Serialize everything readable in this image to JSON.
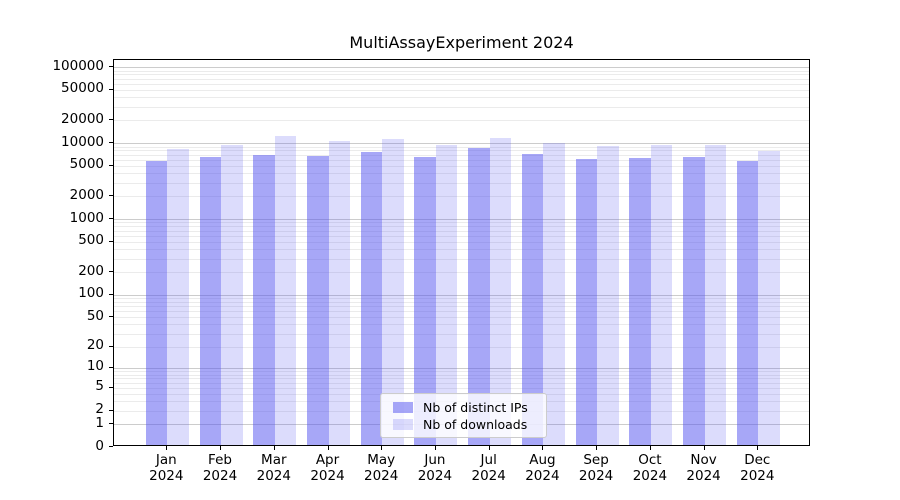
{
  "chart_data": {
    "type": "bar",
    "title": "MultiAssayExperiment 2024",
    "months": [
      "Jan",
      "Feb",
      "Mar",
      "Apr",
      "May",
      "Jun",
      "Jul",
      "Aug",
      "Sep",
      "Oct",
      "Nov",
      "Dec"
    ],
    "year": "2024",
    "series": [
      {
        "name": "Nb of distinct IPs",
        "color": "rgba(80,80,240,0.5)",
        "values": [
          5400,
          6100,
          6500,
          6300,
          7200,
          6100,
          8100,
          6800,
          5800,
          6000,
          6100,
          5400
        ]
      },
      {
        "name": "Nb of downloads",
        "color": "rgba(80,80,240,0.2)",
        "values": [
          7900,
          8800,
          11500,
          9900,
          10800,
          8900,
          10900,
          9300,
          8500,
          8900,
          8900,
          7400
        ]
      }
    ],
    "y_scale": "log10(value+1)",
    "y_tick_values": [
      100000,
      50000,
      20000,
      10000,
      5000,
      2000,
      1000,
      500,
      200,
      100,
      50,
      20,
      10,
      5,
      2,
      1,
      0
    ],
    "ylim": [
      0,
      123000
    ],
    "xlabel": "",
    "ylabel": "",
    "grid": "on",
    "legend_position": "inside lower center"
  },
  "colors": {
    "bar_distinct_ips": "rgba(80,80,240,0.5)",
    "bar_downloads": "rgba(80,80,240,0.2)",
    "grid_major": "#cccccc",
    "grid_minor": "#ebebeb",
    "axis": "#000000",
    "legend_border": "#cccccc",
    "legend_background": "rgba(255,255,255,0.8)"
  }
}
